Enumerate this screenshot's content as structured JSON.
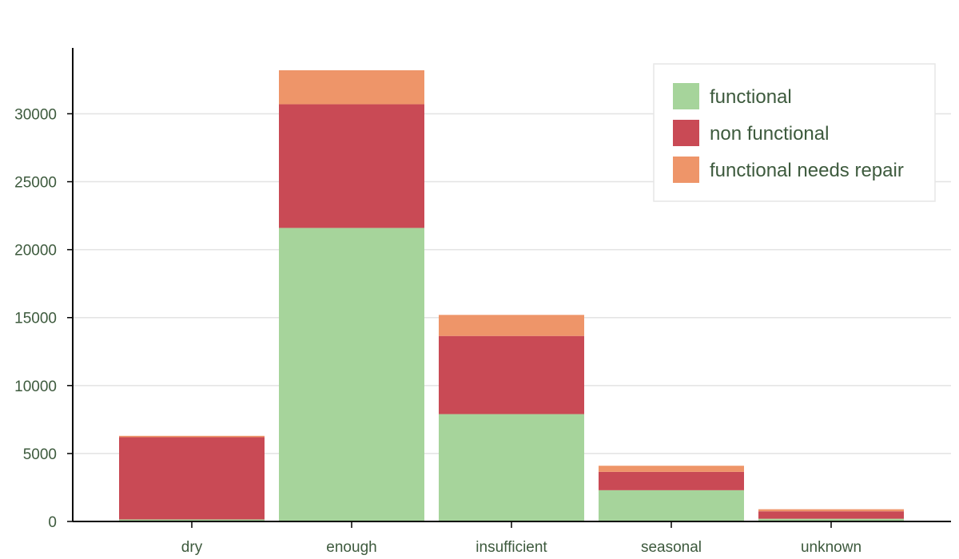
{
  "chart_data": {
    "type": "bar",
    "stacked": true,
    "categories": [
      "dry",
      "enough",
      "insufficient",
      "seasonal",
      "unknown"
    ],
    "series": [
      {
        "name": "functional",
        "color": "#a6d49b",
        "values": [
          150,
          21600,
          7900,
          2300,
          200
        ]
      },
      {
        "name": "non functional",
        "color": "#c94a55",
        "values": [
          6050,
          9100,
          5750,
          1350,
          550
        ]
      },
      {
        "name": "functional needs repair",
        "color": "#ee9569",
        "values": [
          100,
          2500,
          1550,
          450,
          150
        ]
      }
    ],
    "title": "",
    "xlabel": "",
    "ylabel": "",
    "ylim": [
      0,
      35000
    ],
    "yticks": [
      0,
      5000,
      10000,
      15000,
      20000,
      25000,
      30000
    ],
    "grid": "horizontal",
    "legend_position": "top-right"
  }
}
